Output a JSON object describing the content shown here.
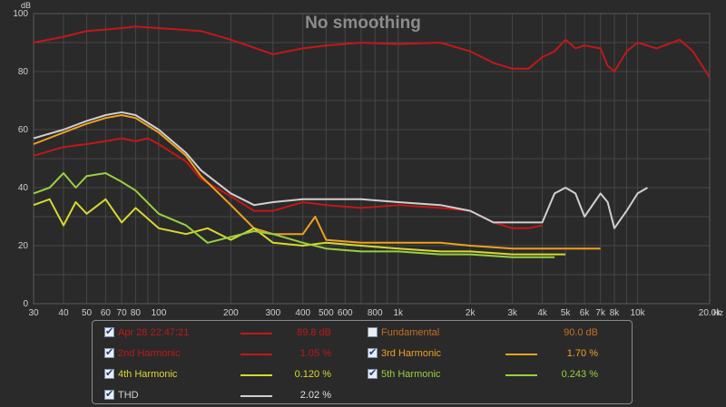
{
  "chart_data": {
    "type": "line",
    "title": "No smoothing",
    "xlabel": "Hz",
    "ylabel": "dB",
    "xscale": "log",
    "xlim": [
      30,
      20000
    ],
    "ylim": [
      0,
      100
    ],
    "x_ticks": [
      30,
      40,
      50,
      60,
      70,
      80,
      100,
      200,
      300,
      400,
      500,
      600,
      800,
      1000,
      2000,
      3000,
      4000,
      5000,
      6000,
      7000,
      8000,
      10000,
      20000
    ],
    "x_tick_labels": [
      "30",
      "40",
      "50",
      "60",
      "70",
      "80",
      "100",
      "200",
      "300",
      "400",
      "500",
      "600",
      "800",
      "1k",
      "2k",
      "3k",
      "4k",
      "5k",
      "6k",
      "7k",
      "8k",
      "10k",
      "20.0k"
    ],
    "y_ticks": [
      0,
      20,
      40,
      60,
      80,
      100
    ],
    "grid": true,
    "legend_position": "bottom",
    "series": [
      {
        "name": "Apr 28 22:47:21",
        "color": "#c21818",
        "value_text": "89.8 dB",
        "checked": true,
        "x": [
          30,
          40,
          50,
          60,
          70,
          80,
          100,
          150,
          200,
          300,
          400,
          500,
          700,
          1000,
          1500,
          2000,
          2500,
          3000,
          3500,
          4000,
          4500,
          5000,
          5500,
          6000,
          7000,
          7500,
          8000,
          9000,
          10000,
          12000,
          15000,
          17000,
          20000
        ],
        "y": [
          90,
          92,
          94,
          94.5,
          95,
          95.5,
          95,
          94,
          91,
          86,
          88,
          89,
          90,
          89.5,
          90,
          87,
          83,
          81,
          81,
          85,
          87,
          91,
          88,
          89,
          88,
          82,
          80,
          87,
          90,
          88,
          91,
          87,
          78
        ]
      },
      {
        "name": "Fundamental",
        "color": "#c27020",
        "value_text": "90.0 dB",
        "checked": false,
        "x": [],
        "y": []
      },
      {
        "name": "2nd Harmonic",
        "color": "#c21818",
        "value_text": "1.05 %",
        "checked": true,
        "x": [
          30,
          40,
          50,
          60,
          70,
          80,
          90,
          100,
          130,
          150,
          200,
          250,
          300,
          400,
          500,
          700,
          1000,
          1500,
          2000,
          2500,
          3000,
          3500,
          4000
        ],
        "y": [
          51,
          54,
          55,
          56,
          57,
          56,
          57,
          55,
          49,
          43,
          37,
          32,
          32,
          35,
          34,
          33,
          34,
          33,
          32,
          28,
          26,
          26,
          27
        ]
      },
      {
        "name": "3rd Harmonic",
        "color": "#f0a020",
        "value_text": "1.70 %",
        "checked": true,
        "x": [
          30,
          40,
          50,
          60,
          70,
          80,
          100,
          130,
          150,
          200,
          250,
          300,
          400,
          450,
          500,
          700,
          1000,
          1500,
          2000,
          3000,
          4000,
          5000,
          7000
        ],
        "y": [
          55,
          59,
          62,
          64,
          65,
          64,
          59,
          51,
          44,
          34,
          26,
          24,
          24,
          30,
          22,
          21,
          21,
          21,
          20,
          19,
          19,
          19,
          19
        ]
      },
      {
        "name": "4th Harmonic",
        "color": "#d8d830",
        "value_text": "0.120 %",
        "checked": true,
        "x": [
          30,
          35,
          40,
          45,
          50,
          60,
          70,
          80,
          100,
          130,
          160,
          200,
          250,
          300,
          400,
          500,
          700,
          1000,
          1500,
          2000,
          3000,
          4000,
          5000
        ],
        "y": [
          34,
          36,
          27,
          35,
          31,
          36,
          28,
          33,
          26,
          24,
          26,
          22,
          26,
          21,
          20,
          21,
          20,
          19,
          18,
          18,
          17,
          17,
          17
        ]
      },
      {
        "name": "5th Harmonic",
        "color": "#98d040",
        "value_text": "0.243 %",
        "checked": true,
        "x": [
          30,
          35,
          40,
          45,
          50,
          60,
          70,
          80,
          100,
          130,
          160,
          200,
          250,
          300,
          400,
          500,
          700,
          1000,
          1500,
          2000,
          3000,
          4000,
          4500
        ],
        "y": [
          38,
          40,
          45,
          40,
          44,
          45,
          42,
          39,
          31,
          27,
          21,
          23,
          25,
          24,
          21,
          19,
          18,
          18,
          17,
          17,
          16,
          16,
          16
        ]
      },
      {
        "name": "THD",
        "color": "#d0d0d0",
        "value_text": "2.02 %",
        "checked": true,
        "x": [
          30,
          40,
          50,
          60,
          70,
          80,
          100,
          130,
          150,
          200,
          250,
          300,
          400,
          500,
          700,
          1000,
          1500,
          2000,
          2500,
          3000,
          3500,
          4000,
          4500,
          5000,
          5500,
          6000,
          7000,
          7500,
          8000,
          9000,
          10000,
          11000
        ],
        "y": [
          57,
          60,
          63,
          65,
          66,
          65,
          60,
          52,
          46,
          38,
          34,
          35,
          36,
          36,
          36,
          35,
          34,
          32,
          28,
          28,
          28,
          28,
          38,
          40,
          38,
          30,
          38,
          35,
          26,
          32,
          38,
          40
        ]
      }
    ]
  }
}
